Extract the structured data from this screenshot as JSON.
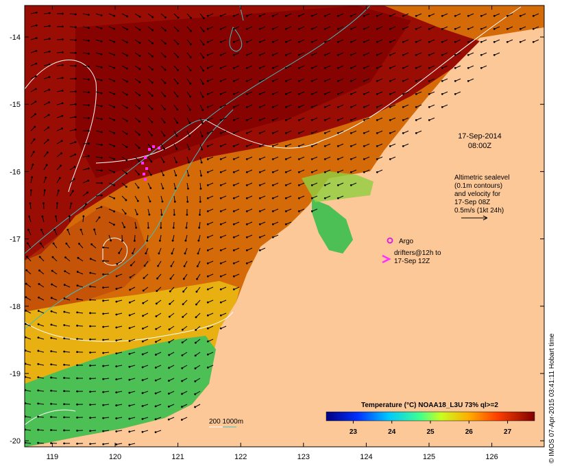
{
  "map": {
    "date": "17-Sep-2014",
    "time": "08:00Z",
    "legend_lines": [
      "Altimetric sealevel",
      "(0.1m contours)",
      "and velocity for",
      "17-Sep 08Z",
      "0.5m/s (1kt 24h)"
    ],
    "argo_label": "Argo",
    "drifter_lines": [
      "drifters@12h to",
      "17-Sep 12Z"
    ],
    "depth_label": "200  1000m",
    "lon_ticks": [
      119,
      120,
      121,
      122,
      123,
      124,
      125,
      126
    ],
    "lat_ticks": [
      -14,
      -15,
      -16,
      -17,
      -18,
      -19,
      -20
    ],
    "colorbar": {
      "title": "Temperature (°C) NOAA18_L3U 73% ql>=2",
      "ticks": [
        23,
        24,
        25,
        26,
        27
      ],
      "range": [
        22.3,
        27.7
      ]
    },
    "credit": "© IMOS 07-Apr-2015 03:41:11 Hobart time",
    "colors": {
      "land": "#fcc898",
      "warm": "#9b0d04",
      "mid": "#d96a06",
      "cool": "#4cbf55",
      "shelf_contour": "#40c0c0"
    }
  }
}
